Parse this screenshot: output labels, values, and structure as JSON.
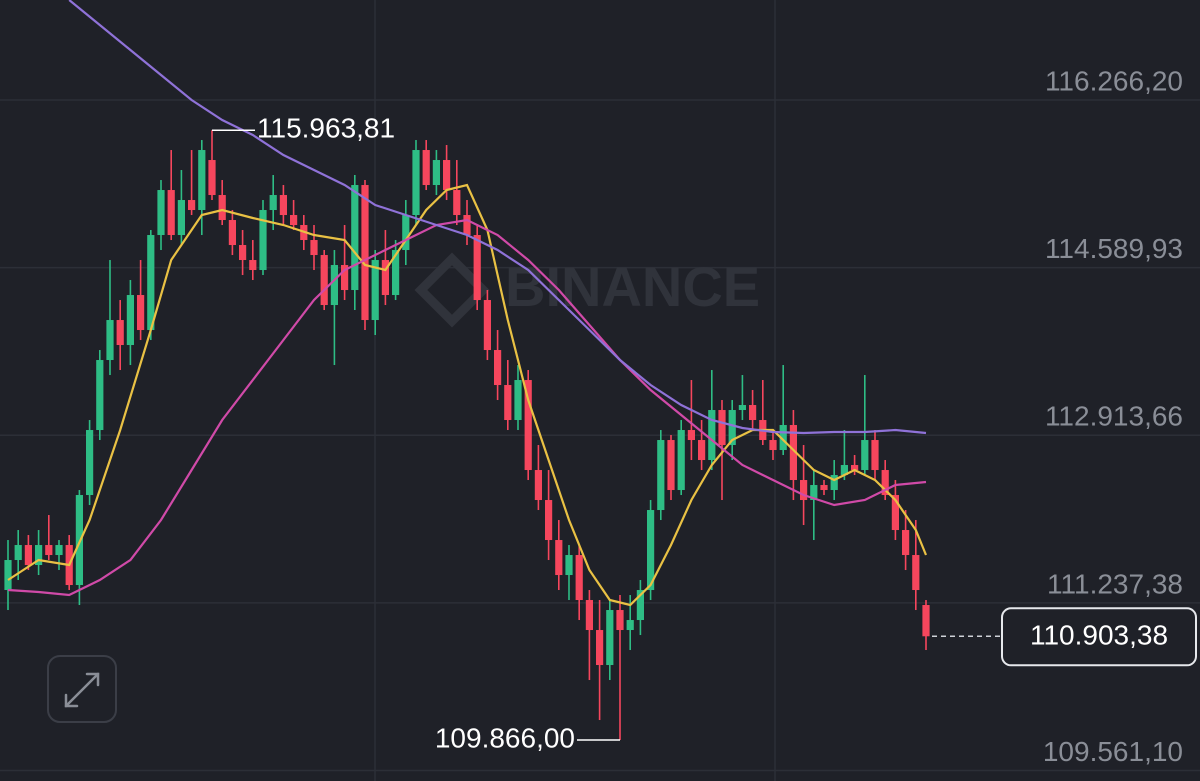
{
  "chart_data": {
    "type": "candlestick",
    "watermark": "BINANCE",
    "ylim": [
      109456.2,
      117266.2
    ],
    "yticks": [
      {
        "value": 116266.2,
        "label": "116.266,20"
      },
      {
        "value": 114589.93,
        "label": "114.589,93"
      },
      {
        "value": 112913.66,
        "label": "112.913,66"
      },
      {
        "value": 111237.38,
        "label": "111.237,38"
      },
      {
        "value": 109561.1,
        "label": "109.561,10"
      }
    ],
    "grid": true,
    "up_color": "#2ebd85",
    "down_color": "#f6465d",
    "candles": [
      [
        111366,
        111866,
        111166,
        111666
      ],
      [
        111666,
        111966,
        111466,
        111816
      ],
      [
        111816,
        111916,
        111566,
        111616
      ],
      [
        111616,
        111966,
        111516,
        111816
      ],
      [
        111816,
        112116,
        111666,
        111716
      ],
      [
        111716,
        111866,
        111566,
        111816
      ],
      [
        111816,
        111916,
        111366,
        111416
      ],
      [
        111416,
        112366,
        111216,
        112316
      ],
      [
        112316,
        113066,
        112216,
        112966
      ],
      [
        112966,
        113766,
        112866,
        113666
      ],
      [
        113666,
        114666,
        113516,
        114066
      ],
      [
        114066,
        114266,
        113566,
        113816
      ],
      [
        113816,
        114466,
        113616,
        114316
      ],
      [
        114316,
        114666,
        113866,
        113966
      ],
      [
        113966,
        114966,
        113866,
        114916
      ],
      [
        114916,
        115466,
        114766,
        115366
      ],
      [
        115366,
        115766,
        114866,
        114916
      ],
      [
        114916,
        115566,
        114816,
        115266
      ],
      [
        115266,
        115766,
        115116,
        115166
      ],
      [
        115166,
        115866,
        114916,
        115766
      ],
      [
        115666,
        115963.81,
        115266,
        115316
      ],
      [
        115316,
        115466,
        115016,
        115066
      ],
      [
        115066,
        115166,
        114716,
        114816
      ],
      [
        114816,
        114966,
        114516,
        114666
      ],
      [
        114666,
        114866,
        114466,
        114566
      ],
      [
        114566,
        115266,
        114516,
        115166
      ],
      [
        115166,
        115516,
        114966,
        115316
      ],
      [
        115316,
        115416,
        115016,
        115116
      ],
      [
        115116,
        115266,
        114966,
        115016
      ],
      [
        115016,
        115116,
        114766,
        114866
      ],
      [
        114866,
        115016,
        114566,
        114716
      ],
      [
        114716,
        114766,
        114166,
        114216
      ],
      [
        114216,
        114766,
        113616,
        114616
      ],
      [
        114616,
        115016,
        114266,
        114366
      ],
      [
        114366,
        115516,
        114166,
        115416
      ],
      [
        115416,
        115466,
        113966,
        114066
      ],
      [
        114066,
        114766,
        113916,
        114666
      ],
      [
        114666,
        114966,
        114216,
        114316
      ],
      [
        114316,
        114866,
        114266,
        114766
      ],
      [
        114766,
        115266,
        114616,
        115116
      ],
      [
        115116,
        115866,
        115016,
        115766
      ],
      [
        115766,
        115866,
        115366,
        115416
      ],
      [
        115416,
        115766,
        115316,
        115666
      ],
      [
        115666,
        115816,
        115266,
        115366
      ],
      [
        115366,
        115666,
        115016,
        115116
      ],
      [
        115116,
        115266,
        114816,
        114916
      ],
      [
        114916,
        115016,
        114166,
        114266
      ],
      [
        114266,
        114366,
        113666,
        113766
      ],
      [
        113766,
        113966,
        113266,
        113416
      ],
      [
        113416,
        113666,
        112966,
        113066
      ],
      [
        113066,
        113616,
        112966,
        113466
      ],
      [
        113466,
        113566,
        112466,
        112566
      ],
      [
        112566,
        112816,
        112166,
        112266
      ],
      [
        112266,
        112566,
        111666,
        111866
      ],
      [
        111866,
        112066,
        111366,
        111516
      ],
      [
        111516,
        111816,
        111266,
        111716
      ],
      [
        111716,
        111816,
        111066,
        111266
      ],
      [
        111266,
        111366,
        110466,
        110966
      ],
      [
        110966,
        111266,
        110066,
        110616
      ],
      [
        110616,
        111266,
        110466,
        111166
      ],
      [
        111166,
        111316,
        109866.0,
        110966
      ],
      [
        110966,
        111316,
        110766,
        111066
      ],
      [
        111066,
        111466,
        110916,
        111366
      ],
      [
        111366,
        112266,
        111266,
        112166
      ],
      [
        112166,
        112966,
        112066,
        112866
      ],
      [
        112866,
        112916,
        112266,
        112366
      ],
      [
        112366,
        113066,
        112316,
        112966
      ],
      [
        112966,
        113466,
        112666,
        112866
      ],
      [
        112866,
        113066,
        112566,
        112666
      ],
      [
        112666,
        113566,
        112566,
        113166
      ],
      [
        113166,
        113266,
        112266,
        112816
      ],
      [
        112816,
        113266,
        112666,
        113166
      ],
      [
        113166,
        113516,
        113066,
        113216
      ],
      [
        113216,
        113366,
        112966,
        113066
      ],
      [
        113066,
        113466,
        112816,
        112866
      ],
      [
        112866,
        112966,
        112666,
        112766
      ],
      [
        112766,
        113616,
        112716,
        113016
      ],
      [
        113016,
        113166,
        112266,
        112466
      ],
      [
        112466,
        112816,
        112016,
        112266
      ],
      [
        112266,
        112566,
        111866,
        112416
      ],
      [
        112416,
        112466,
        112316,
        112366
      ],
      [
        112366,
        112666,
        112266,
        112516
      ],
      [
        112516,
        112966,
        112466,
        112616
      ],
      [
        112616,
        112716,
        112516,
        112566
      ],
      [
        112566,
        113516,
        112516,
        112866
      ],
      [
        112866,
        112966,
        112466,
        112566
      ],
      [
        112566,
        112666,
        112266,
        112316
      ],
      [
        112316,
        112466,
        111866,
        111966
      ],
      [
        111966,
        112166,
        111566,
        111716
      ],
      [
        111716,
        112066,
        111166,
        111366
      ],
      [
        111216,
        111266,
        110766,
        110903.38
      ]
    ],
    "lines": [
      {
        "color": "#e9c144",
        "x": [
          0,
          3,
          6,
          8,
          11,
          14,
          16,
          19,
          21,
          24,
          27,
          30,
          33,
          35,
          37,
          39,
          41,
          43,
          45,
          47,
          49,
          51,
          53,
          55,
          57,
          59,
          61,
          63,
          65,
          67,
          69,
          71,
          73,
          75,
          77,
          79,
          81,
          83,
          85,
          87,
          89,
          90
        ],
        "values": [
          111466,
          111666,
          111616,
          112066,
          112966,
          113966,
          114666,
          115116,
          115166,
          115086,
          115016,
          114916,
          114866,
          114616,
          114566,
          114866,
          115166,
          115366,
          115416,
          114966,
          114066,
          113266,
          112666,
          112066,
          111566,
          111266,
          111216,
          111416,
          111816,
          112266,
          112616,
          112866,
          112966,
          112966,
          112766,
          112566,
          112466,
          112566,
          112466,
          112266,
          111966,
          111716
        ]
      },
      {
        "color": "#d04aa8",
        "x": [
          0,
          3,
          6,
          9,
          12,
          15,
          18,
          21,
          24,
          27,
          30,
          33,
          36,
          39,
          42,
          45,
          48,
          51,
          54,
          57,
          60,
          63,
          66,
          69,
          72,
          75,
          78,
          81,
          84,
          87,
          90
        ],
        "values": [
          111366,
          111346,
          111316,
          111466,
          111666,
          112066,
          112566,
          113066,
          113466,
          113866,
          114266,
          114566,
          114716,
          114866,
          115016,
          115066,
          114916,
          114666,
          114366,
          114016,
          113666,
          113366,
          113116,
          112866,
          112616,
          112466,
          112316,
          112216,
          112266,
          112416,
          112446
        ]
      },
      {
        "color": "#8f72d8",
        "x": [
          6,
          9,
          12,
          15,
          18,
          21,
          24,
          27,
          30,
          33,
          36,
          39,
          42,
          45,
          48,
          51,
          54,
          57,
          60,
          63,
          66,
          69,
          72,
          75,
          78,
          81,
          84,
          87,
          90
        ],
        "values": [
          117266,
          117016,
          116766,
          116516,
          116266,
          116066,
          115916,
          115716,
          115566,
          115416,
          115216,
          115116,
          115016,
          114916,
          114766,
          114566,
          114266,
          113966,
          113666,
          113416,
          113216,
          113066,
          112986,
          112946,
          112936,
          112946,
          112946,
          112966,
          112936
        ]
      }
    ],
    "annotations": [
      {
        "value": 115963.81,
        "label": "115.963,81",
        "candle": 20
      },
      {
        "value": 109866.0,
        "label": "109.866,00",
        "candle": 60
      }
    ],
    "last_price": {
      "value": 110903.38,
      "label": "110.903,38"
    }
  }
}
